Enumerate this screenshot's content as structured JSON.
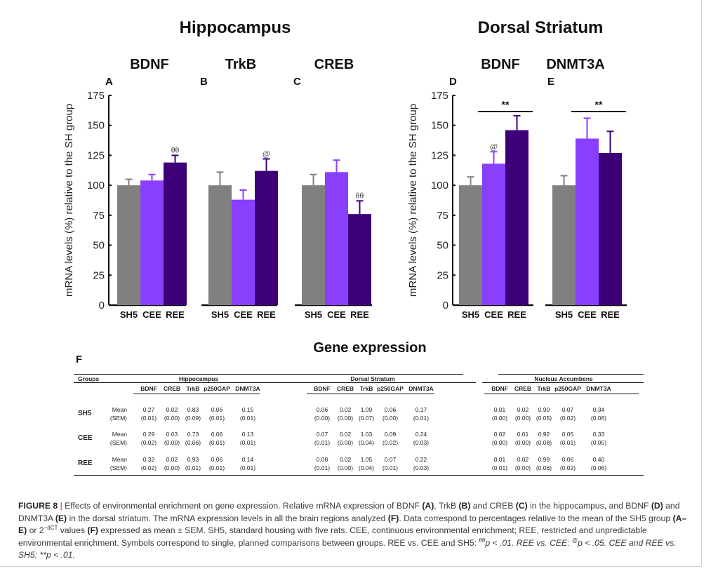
{
  "figure": {
    "region_titles": [
      "Hippocampus",
      "Dorsal Striatum"
    ],
    "ylabel": "mRNA levels (%) relative to the SH group",
    "yticks": [
      0,
      25,
      50,
      75,
      100,
      125,
      150,
      175
    ],
    "group_colors": {
      "SH5": "#808080",
      "CEE": "#8a3ffc",
      "REE": "#3d0078"
    }
  },
  "chart_data": [
    {
      "type": "bar",
      "panel": "A",
      "region": "Hippocampus",
      "title": "BDNF",
      "categories": [
        "SH5",
        "CEE",
        "REE"
      ],
      "values": [
        100,
        104,
        119
      ],
      "errors": [
        5,
        5,
        6
      ],
      "annotations": [
        {
          "category": "REE",
          "symbol": "θθ"
        }
      ],
      "brackets": [],
      "xlabel": "",
      "ylabel": "mRNA levels (%) relative to the SH group",
      "ylim": [
        0,
        175
      ],
      "grid": false
    },
    {
      "type": "bar",
      "panel": "B",
      "region": "Hippocampus",
      "title": "TrkB",
      "categories": [
        "SH5",
        "CEE",
        "REE"
      ],
      "values": [
        100,
        88,
        112
      ],
      "errors": [
        11,
        8,
        10
      ],
      "annotations": [
        {
          "category": "REE",
          "symbol": "@"
        }
      ],
      "brackets": [],
      "xlabel": "",
      "ylabel": "",
      "ylim": [
        0,
        175
      ],
      "grid": false
    },
    {
      "type": "bar",
      "panel": "C",
      "region": "Hippocampus",
      "title": "CREB",
      "categories": [
        "SH5",
        "CEE",
        "REE"
      ],
      "values": [
        100,
        111,
        76
      ],
      "errors": [
        9,
        10,
        11
      ],
      "annotations": [
        {
          "category": "REE",
          "symbol": "θθ"
        }
      ],
      "brackets": [],
      "xlabel": "",
      "ylabel": "",
      "ylim": [
        0,
        175
      ],
      "grid": false
    },
    {
      "type": "bar",
      "panel": "D",
      "region": "Dorsal Striatum",
      "title": "BDNF",
      "categories": [
        "SH5",
        "CEE",
        "REE"
      ],
      "values": [
        100,
        118,
        146
      ],
      "errors": [
        7,
        10,
        12
      ],
      "annotations": [
        {
          "category": "CEE",
          "symbol": "@"
        }
      ],
      "brackets": [
        {
          "from": "CEE",
          "to": "REE",
          "symbol": "**"
        }
      ],
      "xlabel": "",
      "ylabel": "mRNA levels (%) relative to the SH group",
      "ylim": [
        0,
        175
      ],
      "grid": false
    },
    {
      "type": "bar",
      "panel": "E",
      "region": "Dorsal Striatum",
      "title": "DNMT3A",
      "categories": [
        "SH5",
        "CEE",
        "REE"
      ],
      "values": [
        100,
        139,
        127
      ],
      "errors": [
        8,
        17,
        18
      ],
      "annotations": [],
      "brackets": [
        {
          "from": "CEE",
          "to": "REE",
          "symbol": "**"
        }
      ],
      "xlabel": "",
      "ylabel": "",
      "ylim": [
        0,
        175
      ],
      "grid": false
    }
  ],
  "table": {
    "panel": "F",
    "title": "Gene expression",
    "groups_header": "Groups",
    "regions": [
      "Hippocampus",
      "Dorsal Striatum",
      "Nucleus Accumbens"
    ],
    "genes": [
      "BDNF",
      "CREB",
      "TrkB",
      "p250GAP",
      "DNMT3A"
    ],
    "stat_labels": [
      "Mean",
      "(SEM)"
    ],
    "rows": [
      {
        "group": "SH5",
        "mean": [
          [
            "0.27",
            "0.02",
            "0.83",
            "0.06",
            "0.15"
          ],
          [
            "0.06",
            "0.02",
            "1.09",
            "0.06",
            "0.17"
          ],
          [
            "0.01",
            "0.02",
            "0.90",
            "0.07",
            "0.34"
          ]
        ],
        "sem": [
          [
            "(0.01)",
            "(0.00)",
            "(0.09)",
            "(0.01)",
            "(0.01)"
          ],
          [
            "(0.00)",
            "(0.00)",
            "(0.07)",
            "(0.00)",
            "(0.01)"
          ],
          [
            "(0.00)",
            "(0.00)",
            "(0.05)",
            "(0.02)",
            "(0.06)"
          ]
        ]
      },
      {
        "group": "CEE",
        "mean": [
          [
            "0.29",
            "0.03",
            "0.73",
            "0.06",
            "0.13"
          ],
          [
            "0.07",
            "0.02",
            "1.03",
            "0.09",
            "0.24"
          ],
          [
            "0.02",
            "0.01",
            "0.92",
            "0.05",
            "0.33"
          ]
        ],
        "sem": [
          [
            "(0.02)",
            "(0.00)",
            "(0.06)",
            "(0.01)",
            "(0.01)"
          ],
          [
            "(0.01)",
            "(0.00)",
            "(0.04)",
            "(0.02)",
            "(0.03)"
          ],
          [
            "(0.00)",
            "(0.00)",
            "(0.08)",
            "(0.01)",
            "(0.05)"
          ]
        ]
      },
      {
        "group": "REE",
        "mean": [
          [
            "0.32",
            "0.02",
            "0.93",
            "0.06",
            "0.14"
          ],
          [
            "0.08",
            "0.02",
            "1.05",
            "0.07",
            "0.22"
          ],
          [
            "0.01",
            "0.02",
            "0.99",
            "0.06",
            "0.40"
          ]
        ],
        "sem": [
          [
            "(0.02)",
            "(0.00)",
            "(0.01)",
            "(0.01)",
            "(0.01)"
          ],
          [
            "(0.01)",
            "(0.00)",
            "(0.04)",
            "(0.01)",
            "(0.03)"
          ],
          [
            "(0.01)",
            "(0.00)",
            "(0.06)",
            "(0.02)",
            "(0.06)"
          ]
        ]
      }
    ]
  },
  "caption": {
    "label": "FIGURE 8",
    "separator": "|",
    "s1": " Effects of environmental enrichment on gene expression. Relative mRNA expression of BDNF ",
    "A": "(A)",
    "s2": ", TrkB ",
    "B": "(B)",
    "s3": " and CREB ",
    "C": "(C)",
    "s4": " in the hippocampus, and BDNF ",
    "D": "(D)",
    "s5": " and DNMT3A ",
    "E": "(E)",
    "s6": " in the dorsal striatum. The mRNA expression levels in all the brain regions analyzed ",
    "F": "(F)",
    "s7": ". Data correspond to percentages relative to the mean of the SH5 group ",
    "AE": "(A–E)",
    "s8": " or 2",
    "sup1": "−dCT",
    "s9": " values ",
    "F2": "(F)",
    "s10": " expressed as mean ± SEM. SH5, standard housing with five rats. CEE, continuous environmental enrichment; REE, restricted and unpredictable environmental enrichment. Symbols correspond to single, planned comparisons between groups. REE vs. CEE and SH5: ",
    "sup2": "θθ",
    "s11": "p < .01. REE vs. CEE: ",
    "sup3": "@",
    "s12": "p < .05. CEE and REE vs. SH5: **",
    "s13": "p < .01."
  }
}
